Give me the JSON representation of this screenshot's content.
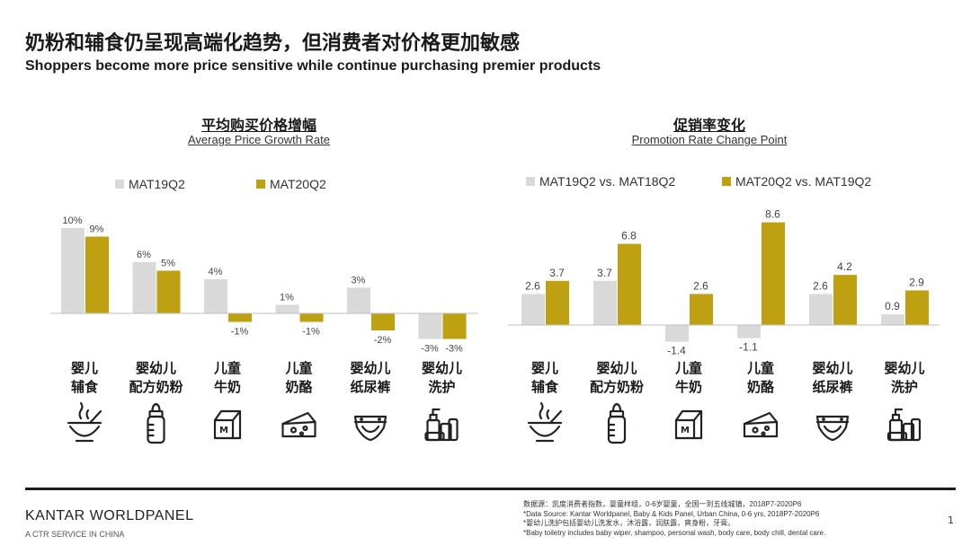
{
  "header": {
    "title_cn": "奶粉和辅食仍呈现高端化趋势，但消费者对价格更加敏感",
    "title_en": "Shoppers become more price sensitive while continue purchasing premier products"
  },
  "colors": {
    "grey": "#d9d9d9",
    "gold": "#bfa010",
    "axis": "#bfbfbf"
  },
  "chart_data": [
    {
      "type": "bar",
      "title": "平均购买价格增幅",
      "subtitle": "Average Price Growth Rate",
      "categories": [
        "婴儿\n辅食",
        "婴幼儿\n配方奶粉",
        "儿童\n牛奶",
        "儿童\n奶酪",
        "婴幼儿\n纸尿裤",
        "婴幼儿\n洗护"
      ],
      "series": [
        {
          "name": "MAT19Q2",
          "values": [
            10,
            6,
            4,
            1,
            3,
            -3
          ],
          "labels": [
            "10%",
            "6%",
            "4%",
            "1%",
            "3%",
            "-3%"
          ]
        },
        {
          "name": "MAT20Q2",
          "values": [
            9,
            5,
            -1,
            -1,
            -2,
            -3
          ],
          "labels": [
            "9%",
            "5%",
            "-1%",
            "-1%",
            "-2%",
            "-3%"
          ]
        }
      ],
      "unit": "%",
      "grid": false,
      "legend_position": "top"
    },
    {
      "type": "bar",
      "title": "促销率变化",
      "subtitle": "Promotion Rate Change Point",
      "categories": [
        "婴儿\n辅食",
        "婴幼儿\n配方奶粉",
        "儿童\n牛奶",
        "儿童\n奶酪",
        "婴幼儿\n纸尿裤",
        "婴幼儿\n洗护"
      ],
      "series": [
        {
          "name": "MAT19Q2 vs. MAT18Q2",
          "values": [
            2.6,
            3.7,
            -1.4,
            -1.1,
            2.6,
            0.9
          ],
          "labels": [
            "2.6",
            "3.7",
            "-1.4",
            "-1.1",
            "2.6",
            "0.9"
          ]
        },
        {
          "name": "MAT20Q2 vs. MAT19Q2",
          "values": [
            3.7,
            6.8,
            2.6,
            8.6,
            4.2,
            2.9
          ],
          "labels": [
            "3.7",
            "6.8",
            "2.6",
            "8.6",
            "4.2",
            "2.9"
          ]
        }
      ],
      "grid": false,
      "legend_position": "top"
    }
  ],
  "icons": [
    "bowl-icon",
    "baby-bottle-icon",
    "milk-carton-icon",
    "cheese-icon",
    "diaper-icon",
    "toiletry-icon"
  ],
  "footer": {
    "brand": "KANTAR WORLDPANEL",
    "brand_sub": "A CTR SERVICE IN CHINA",
    "notes": [
      "数据源：凯度消费者指数，婴童样组，0-6岁婴童，全国一到五线城镇，2018P7-2020P6",
      "*Data Source: Kantar Worldpanel, Baby & Kids Panel, Urban China, 0-6 yrs, 2018P7-2020P6",
      "*婴幼儿洗护包括婴幼儿洗发水，沐浴露，润肤露，爽身粉，牙膏。",
      "*Baby toiletry includes baby wiper, shampoo, personal wash, body care, body chill, dental care."
    ],
    "page": "1"
  }
}
